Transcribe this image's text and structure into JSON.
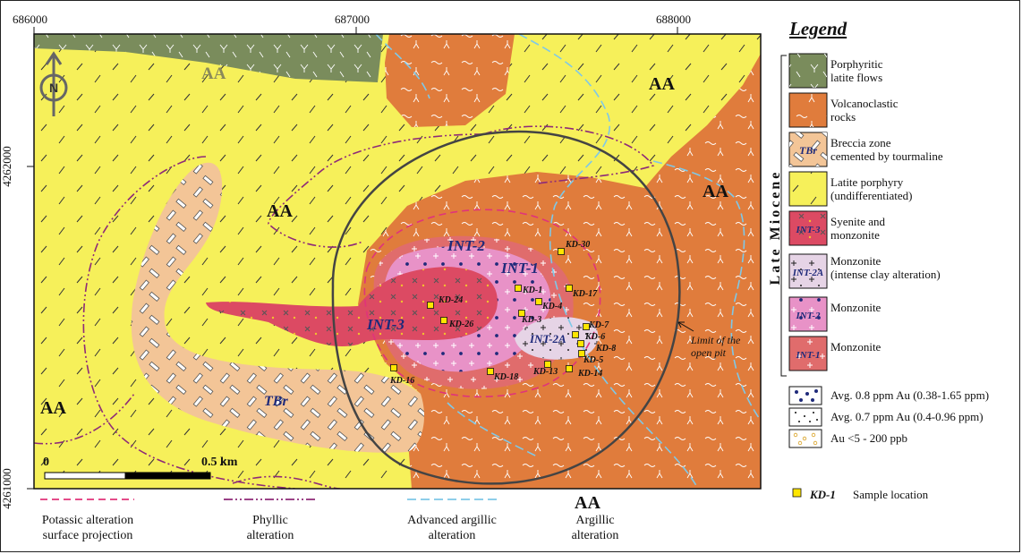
{
  "coords": {
    "top": [
      "686000",
      "687000",
      "688000"
    ],
    "left": [
      "4262000",
      "4261000"
    ]
  },
  "map_labels": {
    "aa": "AA",
    "int1": "INT-1",
    "int2": "INT-2",
    "int2a": "INT-2A",
    "int3": "INT-3",
    "tbr": "TBr",
    "north": "N",
    "pit": "Limit of the\nopen pit"
  },
  "samples": [
    "KD-30",
    "KD-1",
    "KD-17",
    "KD-24",
    "KD-4",
    "KD-3",
    "KD-26",
    "KD-7",
    "KD-6",
    "KD-8",
    "KD-5",
    "KD-13",
    "KD-14",
    "KD-18",
    "KD-16"
  ],
  "scale": {
    "zero": "0",
    "end": "0.5 km"
  },
  "legend": {
    "title": "Legend",
    "age": "Late Miocene",
    "units": [
      {
        "label": "Porphyritic\nlatite flows",
        "color": "#7a8c5c",
        "code": ""
      },
      {
        "label": "Volcanoclastic\nrocks",
        "color": "#e07c3c",
        "code": ""
      },
      {
        "label": "Breccia zone\ncemented by tourmaline",
        "color": "#f3c597",
        "code": "TBr"
      },
      {
        "label": "Latite porphyry\n(undifferentiated)",
        "color": "#f6f05a",
        "code": ""
      },
      {
        "label": "Syenite and\nmonzonite",
        "color": "#dc4a63",
        "code": "INT-3"
      },
      {
        "label": "Monzonite\n(intense clay alteration)",
        "color": "#e6d4e6",
        "code": "INT-2A"
      },
      {
        "label": "Monzonite",
        "color": "#e892c7",
        "code": "INT-2"
      },
      {
        "label": "Monzonite",
        "color": "#e06c6c",
        "code": "INT-1"
      }
    ],
    "gold": [
      "Avg. 0.8 ppm Au  (0.38-1.65 ppm)",
      "Avg. 0.7 ppm Au  (0.4-0.96 ppm)",
      "Au <5 -  200 ppb"
    ],
    "sample_id": "KD-1",
    "sample_text": "Sample location"
  },
  "alteration": {
    "potassic": "Potassic alteration\nsurface projection",
    "phyllic": "Phyllic\nalteration",
    "advanced": "Advanced argillic\nalteration",
    "argillic_code": "AA",
    "argillic": "Argillic\nalteration"
  },
  "colors": {
    "latite_flow": "#7a8c5c",
    "volcanoclastic": "#e07c3c",
    "breccia": "#f3c597",
    "latite": "#f6f05a",
    "int3": "#dc4a63",
    "int2a": "#e6d4e6",
    "int2": "#e892c7",
    "int1": "#e06c6c",
    "potassic_line": "#e0337a",
    "phyllic_line": "#8e2a78",
    "advanced_line": "#7ec8e8",
    "pit_line": "#444444",
    "sample_fill": "#ffe600"
  }
}
